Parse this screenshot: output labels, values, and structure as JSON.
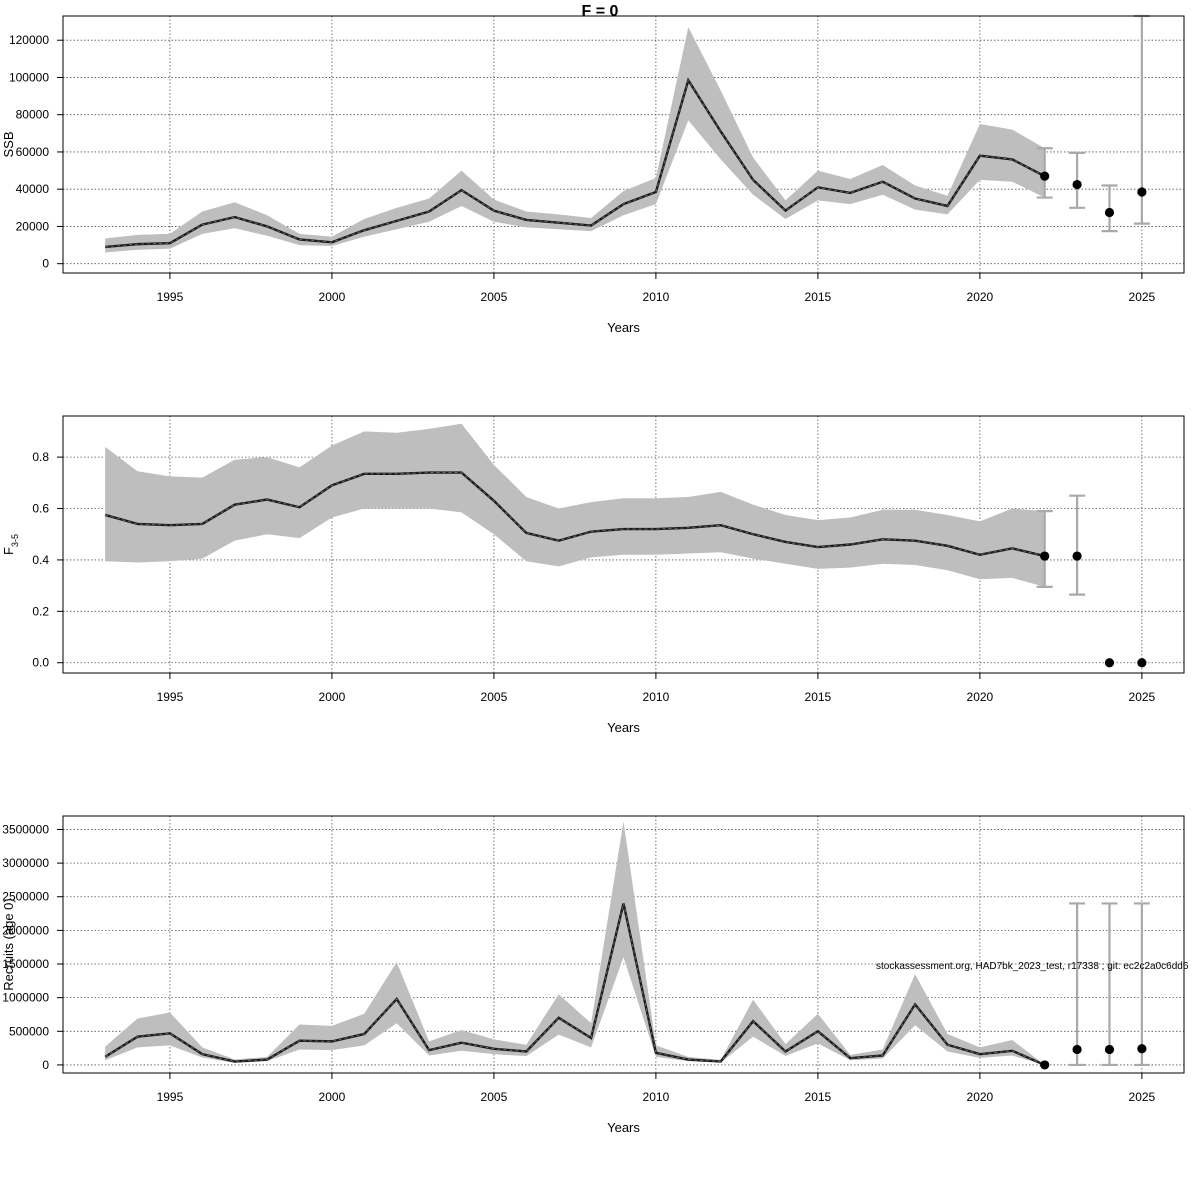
{
  "title": "F = 0",
  "footnote": "stockassessment.org, HAD7bk_2023_test, r17338 ; git: ec2c2a0c6dd6",
  "colors": {
    "band": "#bebebe",
    "line": "#1a1a1a",
    "whisker": "#a9a9a9",
    "point": "#000000",
    "grid": "#555555"
  },
  "chart_data": [
    {
      "type": "line",
      "ylabel": "SSB",
      "xlabel": "Years",
      "xlim": [
        1991.7,
        2026.3
      ],
      "ylim": [
        -5000,
        133000
      ],
      "x_ticks": [
        1995,
        2000,
        2005,
        2010,
        2015,
        2020,
        2025
      ],
      "y_ticks": [
        0,
        20000,
        40000,
        60000,
        80000,
        100000,
        120000
      ],
      "grid": true,
      "estimate": {
        "years": [
          1993,
          1994,
          1995,
          1996,
          1997,
          1998,
          1999,
          2000,
          2001,
          2002,
          2003,
          2004,
          2005,
          2006,
          2007,
          2008,
          2009,
          2010,
          2011,
          2012,
          2013,
          2014,
          2015,
          2016,
          2017,
          2018,
          2019,
          2020,
          2021,
          2022
        ],
        "mean": [
          9000,
          10500,
          11000,
          21000,
          25000,
          20000,
          13000,
          11500,
          18000,
          23000,
          28000,
          39500,
          28500,
          23500,
          22000,
          20500,
          32000,
          38500,
          98500,
          71000,
          45000,
          28500,
          41000,
          38000,
          44000,
          35000,
          31000,
          58000,
          56000,
          47000
        ],
        "low": [
          6000,
          7500,
          8000,
          16000,
          19000,
          15000,
          10000,
          9500,
          14500,
          18500,
          22500,
          31000,
          22500,
          19500,
          18500,
          17500,
          26000,
          32000,
          77000,
          56000,
          37000,
          24000,
          34000,
          32000,
          37000,
          29000,
          26500,
          45000,
          44000,
          35500
        ],
        "high": [
          13500,
          15500,
          16000,
          28000,
          33000,
          26000,
          16000,
          14500,
          24000,
          30000,
          35000,
          50000,
          34500,
          28000,
          26500,
          24500,
          39000,
          46000,
          127000,
          93000,
          57000,
          34000,
          50000,
          45500,
          53000,
          42000,
          36500,
          75000,
          72000,
          62000
        ]
      },
      "forecast": [
        {
          "year": 2022,
          "value": 47000,
          "low": 35500,
          "high": 62000
        },
        {
          "year": 2023,
          "value": 42500,
          "low": 30000,
          "high": 59500
        },
        {
          "year": 2024,
          "value": 27500,
          "low": 17500,
          "high": 42000
        },
        {
          "year": 2025,
          "value": 38500,
          "low": 21500,
          "high": 133000
        }
      ]
    },
    {
      "type": "line",
      "ylabel": "F3-5",
      "xlabel": "Years",
      "xlim": [
        1991.7,
        2026.3
      ],
      "ylim": [
        -0.04,
        0.96
      ],
      "x_ticks": [
        1995,
        2000,
        2005,
        2010,
        2015,
        2020,
        2025
      ],
      "y_ticks": [
        0.0,
        0.2,
        0.4,
        0.6,
        0.8
      ],
      "y_tick_labels": [
        "0.0",
        "0.2",
        "0.4",
        "0.6",
        "0.8"
      ],
      "grid": true,
      "estimate": {
        "years": [
          1993,
          1994,
          1995,
          1996,
          1997,
          1998,
          1999,
          2000,
          2001,
          2002,
          2003,
          2004,
          2005,
          2006,
          2007,
          2008,
          2009,
          2010,
          2011,
          2012,
          2013,
          2014,
          2015,
          2016,
          2017,
          2018,
          2019,
          2020,
          2021,
          2022
        ],
        "mean": [
          0.575,
          0.54,
          0.535,
          0.54,
          0.615,
          0.635,
          0.605,
          0.69,
          0.735,
          0.735,
          0.74,
          0.74,
          0.63,
          0.505,
          0.475,
          0.51,
          0.52,
          0.52,
          0.525,
          0.535,
          0.5,
          0.47,
          0.45,
          0.46,
          0.48,
          0.475,
          0.455,
          0.42,
          0.445,
          0.415
        ],
        "low": [
          0.395,
          0.39,
          0.395,
          0.405,
          0.475,
          0.5,
          0.485,
          0.565,
          0.6,
          0.6,
          0.6,
          0.585,
          0.5,
          0.395,
          0.375,
          0.41,
          0.42,
          0.42,
          0.425,
          0.43,
          0.405,
          0.385,
          0.365,
          0.37,
          0.385,
          0.38,
          0.36,
          0.325,
          0.33,
          0.295
        ],
        "high": [
          0.84,
          0.745,
          0.725,
          0.72,
          0.79,
          0.8,
          0.76,
          0.845,
          0.9,
          0.895,
          0.91,
          0.93,
          0.77,
          0.645,
          0.6,
          0.625,
          0.64,
          0.64,
          0.645,
          0.665,
          0.615,
          0.575,
          0.555,
          0.565,
          0.595,
          0.595,
          0.575,
          0.55,
          0.6,
          0.59
        ]
      },
      "forecast": [
        {
          "year": 2022,
          "value": 0.415,
          "low": 0.295,
          "high": 0.59
        },
        {
          "year": 2023,
          "value": 0.415,
          "low": 0.265,
          "high": 0.65
        },
        {
          "year": 2024,
          "value": 0.0,
          "low": 0.0,
          "high": 0.0
        },
        {
          "year": 2025,
          "value": 0.0,
          "low": 0.0,
          "high": 0.0
        }
      ]
    },
    {
      "type": "line",
      "ylabel": "Recruits (age 0)",
      "xlabel": "Years",
      "xlim": [
        1991.7,
        2026.3
      ],
      "ylim": [
        -120000,
        3700000
      ],
      "x_ticks": [
        1995,
        2000,
        2005,
        2010,
        2015,
        2020,
        2025
      ],
      "y_ticks": [
        0,
        500000,
        1000000,
        1500000,
        2000000,
        2500000,
        3000000,
        3500000
      ],
      "grid": true,
      "estimate": {
        "years": [
          1993,
          1994,
          1995,
          1996,
          1997,
          1998,
          1999,
          2000,
          2001,
          2002,
          2003,
          2004,
          2005,
          2006,
          2007,
          2008,
          2009,
          2010,
          2011,
          2012,
          2013,
          2014,
          2015,
          2016,
          2017,
          2018,
          2019,
          2020,
          2021,
          2022
        ],
        "mean": [
          120000,
          420000,
          470000,
          160000,
          50000,
          80000,
          360000,
          350000,
          460000,
          980000,
          220000,
          330000,
          240000,
          200000,
          700000,
          400000,
          2400000,
          180000,
          80000,
          50000,
          650000,
          200000,
          500000,
          100000,
          140000,
          900000,
          300000,
          160000,
          210000,
          0
        ],
        "low": [
          70000,
          260000,
          290000,
          110000,
          30000,
          55000,
          230000,
          220000,
          290000,
          620000,
          140000,
          210000,
          160000,
          130000,
          450000,
          260000,
          1600000,
          120000,
          55000,
          35000,
          420000,
          135000,
          320000,
          70000,
          95000,
          590000,
          200000,
          105000,
          140000,
          0
        ],
        "high": [
          270000,
          690000,
          780000,
          260000,
          80000,
          120000,
          600000,
          580000,
          760000,
          1530000,
          350000,
          520000,
          380000,
          300000,
          1050000,
          620000,
          3620000,
          290000,
          120000,
          75000,
          970000,
          310000,
          760000,
          150000,
          230000,
          1350000,
          460000,
          260000,
          370000,
          0
        ]
      },
      "forecast": [
        {
          "year": 2022,
          "value": 0,
          "low": 0,
          "high": 0
        },
        {
          "year": 2023,
          "value": 230000,
          "low": 0,
          "high": 2400000
        },
        {
          "year": 2024,
          "value": 230000,
          "low": 0,
          "high": 2400000
        },
        {
          "year": 2025,
          "value": 240000,
          "low": 0,
          "high": 2400000
        }
      ]
    }
  ]
}
